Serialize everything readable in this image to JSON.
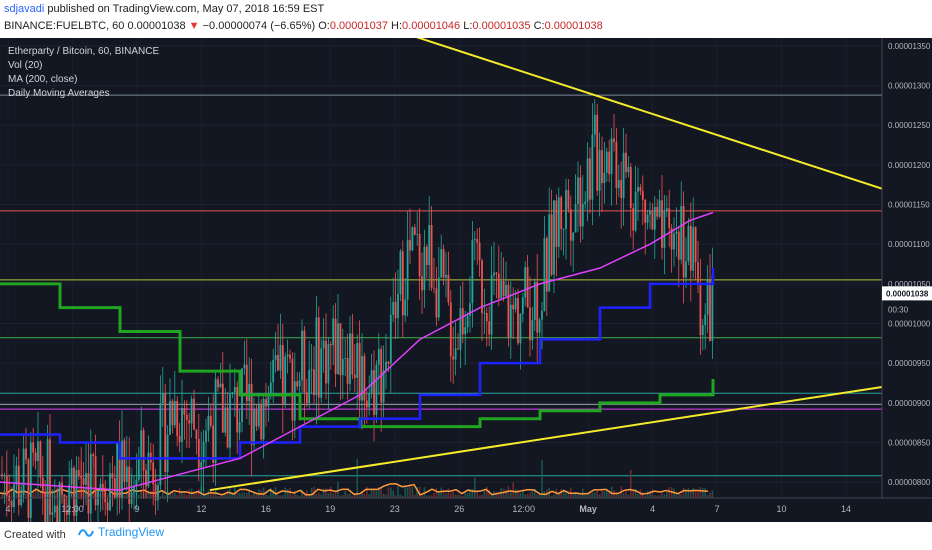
{
  "header": {
    "author": "sdjavadi",
    "published": " published on TradingView.com, May 07, 2018 16:59 EST",
    "symbol": "BINANCE:FUELBTC, 60",
    "last": "0.00001038",
    "change_arrow": "▼",
    "change": "−0.00000074 (−6.65%)",
    "o_label": "O:",
    "o": "0.00001037",
    "h_label": "H:",
    "h": "0.00001046",
    "l_label": "L:",
    "l": "0.00001035",
    "c_label": "C:",
    "c": "0.00001038"
  },
  "legend": {
    "title": "Etherparty / Bitcoin, 60, BINANCE",
    "vol": "Vol (20)",
    "ma": "MA (200, close)",
    "dma": "Daily Moving Averages"
  },
  "footer": {
    "created": "Created with",
    "brand": "TradingView"
  },
  "colors": {
    "background": "#131722",
    "candle_up": "#26a69a",
    "candle_down": "#ef5350",
    "ma200": "#e040fb",
    "dma_blue": "#1e22ff",
    "dma_green": "#1fa51f",
    "trendline": "#f5eb2a",
    "volume": "#ff9a3c"
  },
  "chart_data": {
    "type": "candlestick",
    "price_axis": [
      "0.00001350",
      "0.00001300",
      "0.00001250",
      "0.00001200",
      "0.00001150",
      "0.00001100",
      "0.00001050",
      "0.00001000",
      "0.00000950",
      "0.00000900",
      "0.00000850",
      "0.00000800"
    ],
    "price_range": [
      7.8e-06,
      1.36e-05
    ],
    "last_price_label": "0.00001038",
    "countdown": "00:30",
    "time_axis": [
      "4",
      "12:00",
      "9",
      "12",
      "16",
      "19",
      "23",
      "26",
      "12:00",
      "May",
      "4",
      "7",
      "10",
      "14"
    ],
    "close_path": [
      [
        0,
        8.1e-06
      ],
      [
        20,
        8e-06
      ],
      [
        60,
        8e-06
      ],
      [
        100,
        8.1e-06
      ],
      [
        130,
        8.1e-06
      ],
      [
        155,
        8.3e-06
      ],
      [
        175,
        9e-06
      ],
      [
        200,
        8.7e-06
      ],
      [
        230,
        8.9e-06
      ],
      [
        260,
        9e-06
      ],
      [
        290,
        9.3e-06
      ],
      [
        320,
        9.6e-06
      ],
      [
        345,
        9.8e-06
      ],
      [
        370,
        9.2e-06
      ],
      [
        390,
        9.7e-06
      ],
      [
        405,
        1.08e-05
      ],
      [
        430,
        1.09e-05
      ],
      [
        455,
        9.8e-06
      ],
      [
        470,
        1.06e-05
      ],
      [
        490,
        1.04e-05
      ],
      [
        510,
        1.01e-05
      ],
      [
        540,
        1.04e-05
      ],
      [
        560,
        1.14e-05
      ],
      [
        580,
        1.17e-05
      ],
      [
        595,
        1.21e-05
      ],
      [
        610,
        1.23e-05
      ],
      [
        625,
        1.19e-05
      ],
      [
        645,
        1.14e-05
      ],
      [
        665,
        1.09e-05
      ],
      [
        680,
        1.12e-05
      ],
      [
        695,
        1.07e-05
      ],
      [
        705,
        1e-05
      ],
      [
        713,
        1.04e-05
      ]
    ],
    "ma200_path": [
      [
        0,
        8e-06
      ],
      [
        120,
        7.9e-06
      ],
      [
        180,
        8.1e-06
      ],
      [
        240,
        8.3e-06
      ],
      [
        300,
        8.7e-06
      ],
      [
        360,
        9.1e-06
      ],
      [
        420,
        9.8e-06
      ],
      [
        480,
        1.02e-05
      ],
      [
        540,
        1.05e-05
      ],
      [
        600,
        1.07e-05
      ],
      [
        650,
        1.1e-05
      ],
      [
        690,
        1.13e-05
      ],
      [
        713,
        1.14e-05
      ]
    ],
    "dma_blue_path": [
      [
        0,
        8.6e-06
      ],
      [
        60,
        8.5e-06
      ],
      [
        120,
        8.3e-06
      ],
      [
        180,
        8.3e-06
      ],
      [
        240,
        8.5e-06
      ],
      [
        300,
        8.7e-06
      ],
      [
        360,
        8.8e-06
      ],
      [
        420,
        9.1e-06
      ],
      [
        480,
        9.5e-06
      ],
      [
        540,
        9.8e-06
      ],
      [
        600,
        1.02e-05
      ],
      [
        650,
        1.05e-05
      ],
      [
        713,
        1.07e-05
      ]
    ],
    "dma_green_path": [
      [
        0,
        1.05e-05
      ],
      [
        60,
        1.02e-05
      ],
      [
        120,
        9.9e-06
      ],
      [
        180,
        9.4e-06
      ],
      [
        240,
        9.1e-06
      ],
      [
        300,
        8.8e-06
      ],
      [
        360,
        8.7e-06
      ],
      [
        420,
        8.7e-06
      ],
      [
        480,
        8.8e-06
      ],
      [
        540,
        8.9e-06
      ],
      [
        600,
        9e-06
      ],
      [
        660,
        9.1e-06
      ],
      [
        713,
        9.3e-06
      ]
    ],
    "trendline_upper": [
      [
        395,
        1.37e-05
      ],
      [
        882,
        1.17e-05
      ]
    ],
    "trendline_lower": [
      [
        210,
        7.9e-06
      ],
      [
        882,
        9.2e-06
      ]
    ],
    "h_lines": [
      {
        "price": 1.288e-05,
        "color": "#7a8a96"
      },
      {
        "price": 1.142e-05,
        "color": "#ef5350"
      },
      {
        "price": 1.055e-05,
        "color": "#b4c43a"
      },
      {
        "price": 9.82e-06,
        "color": "#3fae4a"
      },
      {
        "price": 9.12e-06,
        "color": "#26a69a"
      },
      {
        "price": 8.98e-06,
        "color": "#9aa0aa"
      },
      {
        "price": 8.92e-06,
        "color": "#e040fb"
      },
      {
        "price": 8.08e-06,
        "color": "#26a69a"
      }
    ]
  }
}
